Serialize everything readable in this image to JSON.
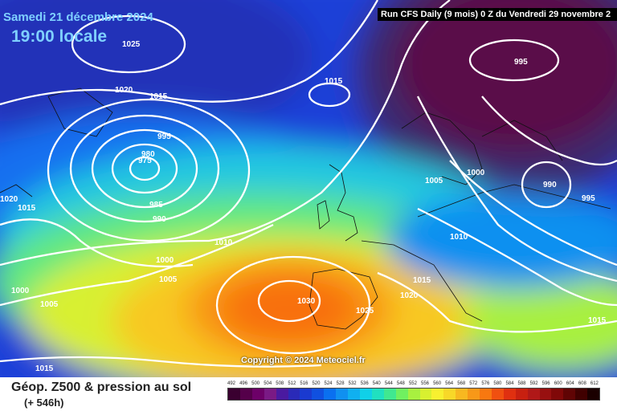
{
  "map": {
    "date_label": "Samedi 21 décembre 2024",
    "time_label": "19:00 locale",
    "run_label": "Run CFS Daily (9 mois) 0 Z du Vendredi 29 novembre 2",
    "copyright": "Copyright © 2024 Meteociel.fr",
    "pressure_labels": [
      "1025",
      "1020",
      "1015",
      "1015",
      "995",
      "980",
      "975",
      "985",
      "990",
      "1020",
      "1015",
      "1010",
      "1000",
      "1005",
      "1000",
      "1005",
      "1030",
      "1025",
      "1015",
      "1020",
      "1010",
      "1005",
      "1000",
      "995",
      "990",
      "995",
      "1015",
      "1015"
    ]
  },
  "footer": {
    "title": "Géop. Z500 & pression au sol",
    "subtitle": "(+ 546h)"
  },
  "scale": {
    "labels": [
      "492",
      "496",
      "500",
      "504",
      "508",
      "512",
      "516",
      "520",
      "524",
      "528",
      "532",
      "536",
      "540",
      "544",
      "548",
      "552",
      "556",
      "560",
      "564",
      "568",
      "572",
      "576",
      "580",
      "584",
      "588",
      "592",
      "596",
      "600",
      "604",
      "608",
      "612"
    ],
    "colors": [
      "#3a0030",
      "#55004a",
      "#6d0068",
      "#7a1a85",
      "#4a1aa0",
      "#2a2ab8",
      "#1a3ad0",
      "#1050e0",
      "#0a70f0",
      "#1090f0",
      "#10b0f0",
      "#10d0e8",
      "#20e0c0",
      "#40e890",
      "#70f060",
      "#a8f040",
      "#d8f030",
      "#f8f030",
      "#f8d828",
      "#f8b820",
      "#f89818",
      "#f87810",
      "#f05010",
      "#e03010",
      "#c82010",
      "#b01818",
      "#981010",
      "#800808",
      "#600404",
      "#400000",
      "#1a0000"
    ]
  }
}
